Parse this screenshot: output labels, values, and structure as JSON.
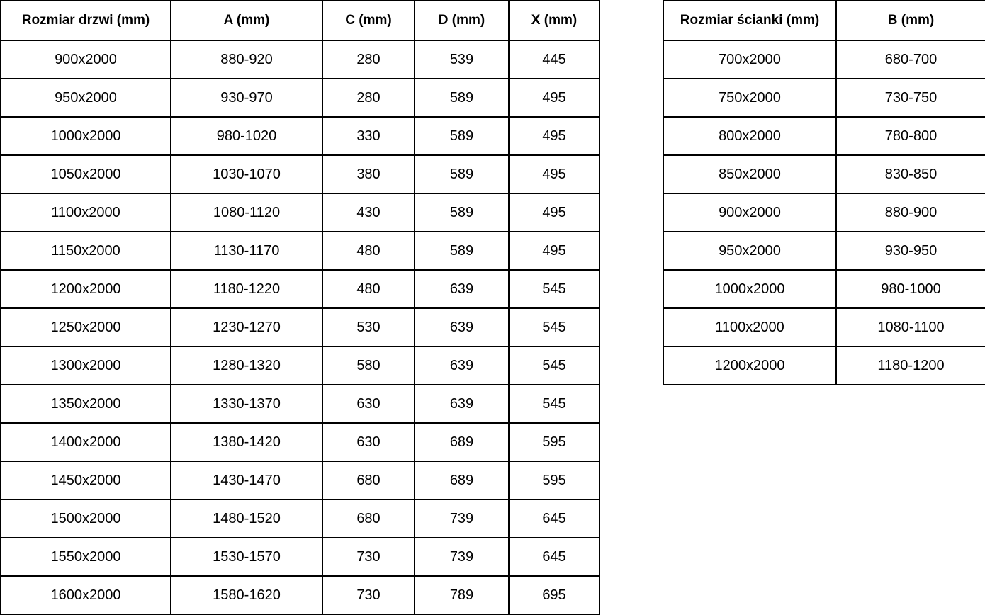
{
  "door_table": {
    "headers": [
      "Rozmiar drzwi (mm)",
      "A (mm)",
      "C (mm)",
      "D (mm)",
      "X (mm)"
    ],
    "rows": [
      [
        "900x2000",
        "880-920",
        "280",
        "539",
        "445"
      ],
      [
        "950x2000",
        "930-970",
        "280",
        "589",
        "495"
      ],
      [
        "1000x2000",
        "980-1020",
        "330",
        "589",
        "495"
      ],
      [
        "1050x2000",
        "1030-1070",
        "380",
        "589",
        "495"
      ],
      [
        "1100x2000",
        "1080-1120",
        "430",
        "589",
        "495"
      ],
      [
        "1150x2000",
        "1130-1170",
        "480",
        "589",
        "495"
      ],
      [
        "1200x2000",
        "1180-1220",
        "480",
        "639",
        "545"
      ],
      [
        "1250x2000",
        "1230-1270",
        "530",
        "639",
        "545"
      ],
      [
        "1300x2000",
        "1280-1320",
        "580",
        "639",
        "545"
      ],
      [
        "1350x2000",
        "1330-1370",
        "630",
        "639",
        "545"
      ],
      [
        "1400x2000",
        "1380-1420",
        "630",
        "689",
        "595"
      ],
      [
        "1450x2000",
        "1430-1470",
        "680",
        "689",
        "595"
      ],
      [
        "1500x2000",
        "1480-1520",
        "680",
        "739",
        "645"
      ],
      [
        "1550x2000",
        "1530-1570",
        "730",
        "739",
        "645"
      ],
      [
        "1600x2000",
        "1580-1620",
        "730",
        "789",
        "695"
      ]
    ]
  },
  "wall_table": {
    "headers": [
      "Rozmiar ścianki (mm)",
      "B (mm)"
    ],
    "rows": [
      [
        "700x2000",
        "680-700"
      ],
      [
        "750x2000",
        "730-750"
      ],
      [
        "800x2000",
        "780-800"
      ],
      [
        "850x2000",
        "830-850"
      ],
      [
        "900x2000",
        "880-900"
      ],
      [
        "950x2000",
        "930-950"
      ],
      [
        "1000x2000",
        "980-1000"
      ],
      [
        "1100x2000",
        "1080-1100"
      ],
      [
        "1200x2000",
        "1180-1200"
      ]
    ]
  },
  "colors": {
    "border": "#000000",
    "background": "#ffffff",
    "text": "#000000"
  }
}
